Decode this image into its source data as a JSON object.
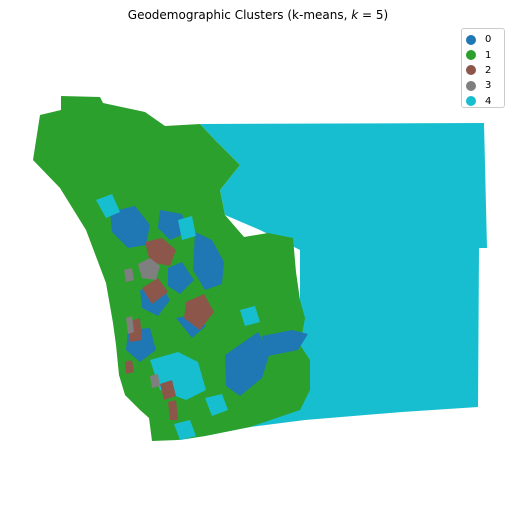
{
  "chart_data": {
    "type": "choropleth",
    "title": "Geodemographic Clusters (k-means, k = 5)",
    "title_parts": {
      "before": "Geodemographic Clusters (k-means, ",
      "var": "k",
      "after": " = 5)"
    },
    "legend_placement": "top-right",
    "categories": [
      {
        "label": "0",
        "color": "#1f77b4"
      },
      {
        "label": "1",
        "color": "#2ca02c"
      },
      {
        "label": "2",
        "color": "#8c564b"
      },
      {
        "label": "3",
        "color": "#7f7f7f"
      },
      {
        "label": "4",
        "color": "#17becf"
      }
    ],
    "axes_visible": false
  }
}
